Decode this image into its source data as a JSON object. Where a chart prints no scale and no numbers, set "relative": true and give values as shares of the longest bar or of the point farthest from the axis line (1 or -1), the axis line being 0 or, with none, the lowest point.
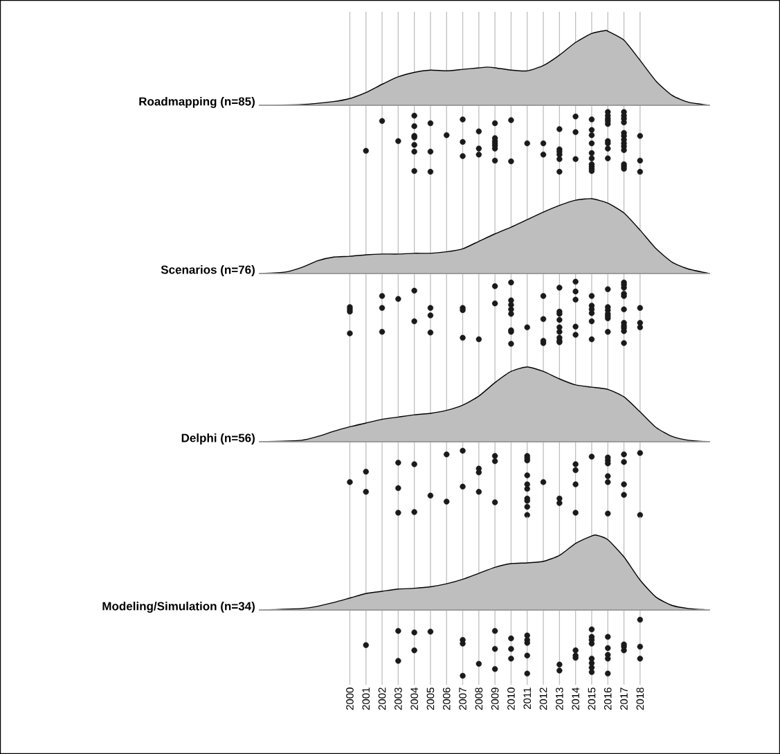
{
  "chart_data": [
    {
      "type": "area",
      "ylabel": "Roadmapping (n=85)",
      "relative": true,
      "xlim": [
        1994.4,
        2022.3
      ],
      "xticks": [
        2000,
        2001,
        2002,
        2003,
        2004,
        2005,
        2006,
        2007,
        2008,
        2009,
        2010,
        2011,
        2012,
        2013,
        2014,
        2015,
        2016,
        2017,
        2018
      ],
      "grid": "x",
      "tick_labels": false,
      "series": [
        {
          "color": "#bebebe",
          "x": [
            1994.4,
            1997,
            1999,
            2000,
            2001,
            2002,
            2003,
            2004,
            2005,
            2006,
            2007,
            2008,
            2008.5,
            2009,
            2010,
            2011,
            2012,
            2013,
            2014,
            2015,
            2015.9,
            2016,
            2017,
            2018,
            2019,
            2020,
            2021,
            2022.3
          ],
          "values": [
            0,
            0.01,
            0.05,
            0.09,
            0.17,
            0.28,
            0.38,
            0.44,
            0.47,
            0.46,
            0.48,
            0.5,
            0.51,
            0.5,
            0.47,
            0.46,
            0.53,
            0.67,
            0.84,
            0.96,
            1.0,
            0.99,
            0.87,
            0.6,
            0.32,
            0.13,
            0.04,
            0
          ]
        },
        {
          "type": "scatter",
          "color": "#1a1a1a",
          "marker": "circle",
          "x": [
            2001,
            2002,
            2003,
            2004,
            2004,
            2004,
            2004,
            2004,
            2004,
            2004,
            2005,
            2005,
            2005,
            2006,
            2007,
            2007,
            2007,
            2008,
            2008,
            2008,
            2009,
            2009,
            2009,
            2009,
            2009,
            2009,
            2009,
            2010,
            2010,
            2011,
            2012,
            2012,
            2013,
            2013,
            2013,
            2013,
            2013,
            2013,
            2014,
            2014,
            2014,
            2015,
            2015,
            2015,
            2015,
            2015,
            2015,
            2015,
            2015,
            2015,
            2015,
            2016,
            2016,
            2016,
            2016,
            2016,
            2016,
            2016,
            2016,
            2016,
            2017,
            2017,
            2017,
            2017,
            2017,
            2017,
            2017,
            2017,
            2017,
            2017,
            2017,
            2017,
            2017,
            2018,
            2018,
            2018
          ],
          "values": [
            -0.61,
            -0.21,
            -0.48,
            -0.14,
            -0.28,
            -0.41,
            -0.43,
            -0.53,
            -0.62,
            -0.88,
            -0.24,
            -0.62,
            -0.89,
            -0.4,
            -0.19,
            -0.49,
            -0.68,
            -0.35,
            -0.58,
            -0.66,
            -0.24,
            -0.44,
            -0.48,
            -0.51,
            -0.54,
            -0.58,
            -0.74,
            -0.2,
            -0.75,
            -0.51,
            -0.51,
            -0.66,
            -0.32,
            -0.59,
            -0.62,
            -0.66,
            -0.72,
            -0.89,
            -0.15,
            -0.36,
            -0.72,
            -0.19,
            -0.33,
            -0.4,
            -0.51,
            -0.64,
            -0.71,
            -0.79,
            -0.82,
            -0.85,
            -0.88,
            -0.09,
            -0.14,
            -0.18,
            -0.21,
            -0.25,
            -0.48,
            -0.51,
            -0.58,
            -0.71,
            -0.09,
            -0.14,
            -0.18,
            -0.23,
            -0.37,
            -0.41,
            -0.46,
            -0.51,
            -0.55,
            -0.6,
            -0.79,
            -0.82,
            -0.85,
            -0.41,
            -0.74,
            -0.89
          ]
        }
      ]
    },
    {
      "type": "area",
      "ylabel": "Scenarios (n=76)",
      "relative": true,
      "xlim": [
        1994.4,
        2022.3
      ],
      "xticks": [
        2000,
        2001,
        2002,
        2003,
        2004,
        2005,
        2006,
        2007,
        2008,
        2009,
        2010,
        2011,
        2012,
        2013,
        2014,
        2015,
        2016,
        2017,
        2018
      ],
      "grid": "x",
      "tick_labels": false,
      "series": [
        {
          "color": "#bebebe",
          "x": [
            1994.4,
            1996,
            1997,
            1998,
            1999,
            2000,
            2001,
            2002,
            2003,
            2004,
            2005,
            2006,
            2007,
            2008,
            2009,
            2010,
            2011,
            2012,
            2013,
            2014,
            2015,
            2016,
            2017,
            2018,
            2019,
            2020,
            2021,
            2022.3
          ],
          "values": [
            0,
            0.02,
            0.08,
            0.17,
            0.22,
            0.23,
            0.25,
            0.26,
            0.26,
            0.27,
            0.27,
            0.29,
            0.33,
            0.43,
            0.53,
            0.62,
            0.72,
            0.82,
            0.91,
            0.98,
            1.0,
            0.94,
            0.81,
            0.58,
            0.33,
            0.15,
            0.06,
            0
          ]
        },
        {
          "type": "scatter",
          "color": "#1a1a1a",
          "marker": "circle",
          "x": [
            2000,
            2000,
            2000,
            2000,
            2002,
            2002,
            2002,
            2003,
            2004,
            2004,
            2005,
            2005,
            2005,
            2007,
            2007,
            2007,
            2008,
            2009,
            2009,
            2010,
            2010,
            2010,
            2010,
            2010,
            2010,
            2010,
            2010,
            2011,
            2012,
            2012,
            2012,
            2012,
            2013,
            2013,
            2013,
            2013,
            2013,
            2013,
            2013,
            2013,
            2013,
            2014,
            2014,
            2014,
            2014,
            2014,
            2015,
            2015,
            2015,
            2015,
            2015,
            2015,
            2016,
            2016,
            2016,
            2016,
            2016,
            2016,
            2016,
            2017,
            2017,
            2017,
            2017,
            2017,
            2017,
            2017,
            2017,
            2017,
            2017,
            2017,
            2018,
            2018,
            2018
          ],
          "values": [
            -0.45,
            -0.48,
            -0.51,
            -0.8,
            -0.3,
            -0.46,
            -0.78,
            -0.34,
            -0.23,
            -0.64,
            -0.46,
            -0.56,
            -0.79,
            -0.46,
            -0.49,
            -0.86,
            -0.88,
            -0.17,
            -0.4,
            -0.12,
            -0.36,
            -0.42,
            -0.48,
            -0.54,
            -0.76,
            -0.78,
            -0.94,
            -0.72,
            -0.3,
            -0.61,
            -0.9,
            -0.93,
            -0.19,
            -0.51,
            -0.54,
            -0.62,
            -0.72,
            -0.78,
            -0.86,
            -0.9,
            -0.92,
            -0.11,
            -0.24,
            -0.35,
            -0.71,
            -0.82,
            -0.3,
            -0.43,
            -0.48,
            -0.53,
            -0.64,
            -0.88,
            -0.21,
            -0.45,
            -0.49,
            -0.54,
            -0.57,
            -0.6,
            -0.78,
            -0.12,
            -0.15,
            -0.19,
            -0.27,
            -0.3,
            -0.48,
            -0.66,
            -0.7,
            -0.73,
            -0.77,
            -0.93,
            -0.46,
            -0.66,
            -0.72
          ]
        }
      ]
    },
    {
      "type": "area",
      "ylabel": "Delphi (n=56)",
      "relative": true,
      "xlim": [
        1994.4,
        2022.3
      ],
      "xticks": [
        2000,
        2001,
        2002,
        2003,
        2004,
        2005,
        2006,
        2007,
        2008,
        2009,
        2010,
        2011,
        2012,
        2013,
        2014,
        2015,
        2016,
        2017,
        2018
      ],
      "grid": "x",
      "tick_labels": false,
      "series": [
        {
          "color": "#bebebe",
          "x": [
            1994.4,
            1997,
            1998,
            1999,
            2000,
            2001,
            2002,
            2003,
            2004,
            2005,
            2006,
            2007,
            2008,
            2009,
            2010,
            2011,
            2012,
            2013,
            2014,
            2015,
            2016,
            2017,
            2018,
            2019,
            2020,
            2021,
            2022.3
          ],
          "values": [
            0,
            0.02,
            0.07,
            0.14,
            0.2,
            0.25,
            0.3,
            0.33,
            0.36,
            0.38,
            0.42,
            0.49,
            0.61,
            0.79,
            0.94,
            1.0,
            0.94,
            0.84,
            0.76,
            0.73,
            0.7,
            0.6,
            0.4,
            0.19,
            0.07,
            0.02,
            0
          ]
        },
        {
          "type": "scatter",
          "color": "#1a1a1a",
          "marker": "circle",
          "x": [
            2000,
            2001,
            2001,
            2003,
            2003,
            2003,
            2004,
            2004,
            2005,
            2006,
            2006,
            2007,
            2007,
            2008,
            2008,
            2008,
            2009,
            2009,
            2009,
            2011,
            2011,
            2011,
            2011,
            2011,
            2011,
            2011,
            2011,
            2011,
            2011,
            2012,
            2013,
            2013,
            2014,
            2014,
            2014,
            2014,
            2015,
            2016,
            2016,
            2016,
            2016,
            2016,
            2016,
            2017,
            2017,
            2017,
            2017,
            2018,
            2018
          ],
          "values": [
            -0.54,
            -0.4,
            -0.67,
            -0.28,
            -0.62,
            -0.95,
            -0.3,
            -0.94,
            -0.72,
            -0.17,
            -0.8,
            -0.12,
            -0.6,
            -0.36,
            -0.41,
            -0.67,
            -0.19,
            -0.26,
            -0.81,
            -0.19,
            -0.22,
            -0.25,
            -0.45,
            -0.57,
            -0.63,
            -0.76,
            -0.79,
            -0.87,
            -0.98,
            -0.54,
            -0.76,
            -0.82,
            -0.3,
            -0.38,
            -0.57,
            -0.95,
            -0.2,
            -0.21,
            -0.25,
            -0.29,
            -0.46,
            -0.54,
            -0.96,
            -0.17,
            -0.27,
            -0.57,
            -0.71,
            -0.15,
            -0.98
          ]
        }
      ]
    },
    {
      "type": "area",
      "ylabel": "Modeling/Simulation (n=34)",
      "relative": true,
      "xlim": [
        1994.4,
        2022.3
      ],
      "xticks": [
        2000,
        2001,
        2002,
        2003,
        2004,
        2005,
        2006,
        2007,
        2008,
        2009,
        2010,
        2011,
        2012,
        2013,
        2014,
        2015,
        2016,
        2017,
        2018
      ],
      "grid": "x",
      "tick_labels": "x",
      "series": [
        {
          "color": "#bebebe",
          "x": [
            1994.4,
            1997,
            1998,
            1999,
            2000,
            2001,
            2002,
            2003,
            2004,
            2005,
            2006,
            2007,
            2008,
            2009,
            2010,
            2011,
            2012,
            2013,
            2014,
            2015,
            2015.3,
            2016,
            2017,
            2018,
            2019,
            2020,
            2021,
            2022.3
          ],
          "values": [
            0,
            0.02,
            0.05,
            0.1,
            0.16,
            0.22,
            0.25,
            0.28,
            0.29,
            0.31,
            0.35,
            0.41,
            0.49,
            0.57,
            0.62,
            0.63,
            0.65,
            0.73,
            0.89,
            0.99,
            1.0,
            0.94,
            0.71,
            0.4,
            0.17,
            0.06,
            0.02,
            0
          ]
        },
        {
          "type": "scatter",
          "color": "#1a1a1a",
          "marker": "circle",
          "x": [
            2001,
            2003,
            2003,
            2004,
            2004,
            2005,
            2007,
            2007,
            2007,
            2008,
            2009,
            2009,
            2009,
            2010,
            2010,
            2010,
            2011,
            2011,
            2011,
            2011,
            2011,
            2013,
            2013,
            2014,
            2014,
            2014,
            2015,
            2015,
            2015,
            2015,
            2015,
            2015,
            2015,
            2015,
            2016,
            2016,
            2016,
            2016,
            2016,
            2017,
            2017,
            2017,
            2018,
            2018,
            2018
          ],
          "values": [
            -0.47,
            -0.28,
            -0.68,
            -0.3,
            -0.54,
            -0.29,
            -0.4,
            -0.45,
            -0.88,
            -0.72,
            -0.28,
            -0.52,
            -0.79,
            -0.38,
            -0.52,
            -0.65,
            -0.34,
            -0.4,
            -0.44,
            -0.61,
            -0.85,
            -0.73,
            -0.81,
            -0.54,
            -0.61,
            -0.64,
            -0.26,
            -0.36,
            -0.4,
            -0.45,
            -0.65,
            -0.71,
            -0.77,
            -0.83,
            -0.36,
            -0.51,
            -0.6,
            -0.65,
            -0.85,
            -0.46,
            -0.49,
            -0.54,
            -0.13,
            -0.49,
            -0.65
          ]
        }
      ]
    }
  ]
}
